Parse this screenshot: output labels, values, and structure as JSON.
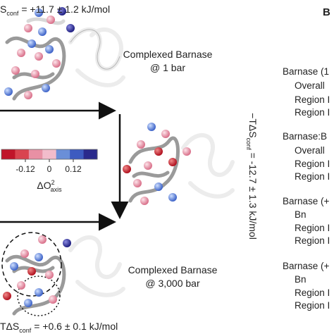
{
  "panel_a": {
    "top_energy": {
      "symbol": "S",
      "sub": "conf",
      "rest": "= +11.7 ± 1.2 kJ/mol"
    },
    "state_1": {
      "line1": "Complexed Barnase",
      "line2": "@ 1 bar"
    },
    "colorbar": {
      "lim": [
        -0.24,
        0.24
      ],
      "ticks": [
        -0.12,
        0,
        0.12
      ],
      "colors": [
        "#c0142a",
        "#d94450",
        "#e890a4",
        "#f2bccb",
        "#6a8fd8",
        "#3d5bc0",
        "#2a2a8c"
      ],
      "label": {
        "main": "ΔO",
        "sup": "2",
        "sub": "axis"
      }
    },
    "transition_energy": {
      "symbol": "−TΔS",
      "sub": "conf",
      "rest": "= -12.7 ± 1.3 kJ/mol"
    },
    "state_2": {
      "line1": "Complexed Barnase",
      "line2": "@ 3,000 bar"
    },
    "bottom_energy": {
      "symbol": "TΔS",
      "sub": "conf",
      "rest": "= +0.6 ± 0.1 kJ/mol"
    }
  },
  "panel_b": {
    "label": "B",
    "rows": [
      "Barnase (1",
      "Overall",
      "Region I",
      "Region I",
      "Barnase:B",
      "Overall",
      "Region I",
      "Region I",
      "Barnase (+",
      "Bn",
      "Region I",
      "Region I",
      "Barnase (+",
      "Bn",
      "Region I",
      "Region I"
    ]
  }
}
